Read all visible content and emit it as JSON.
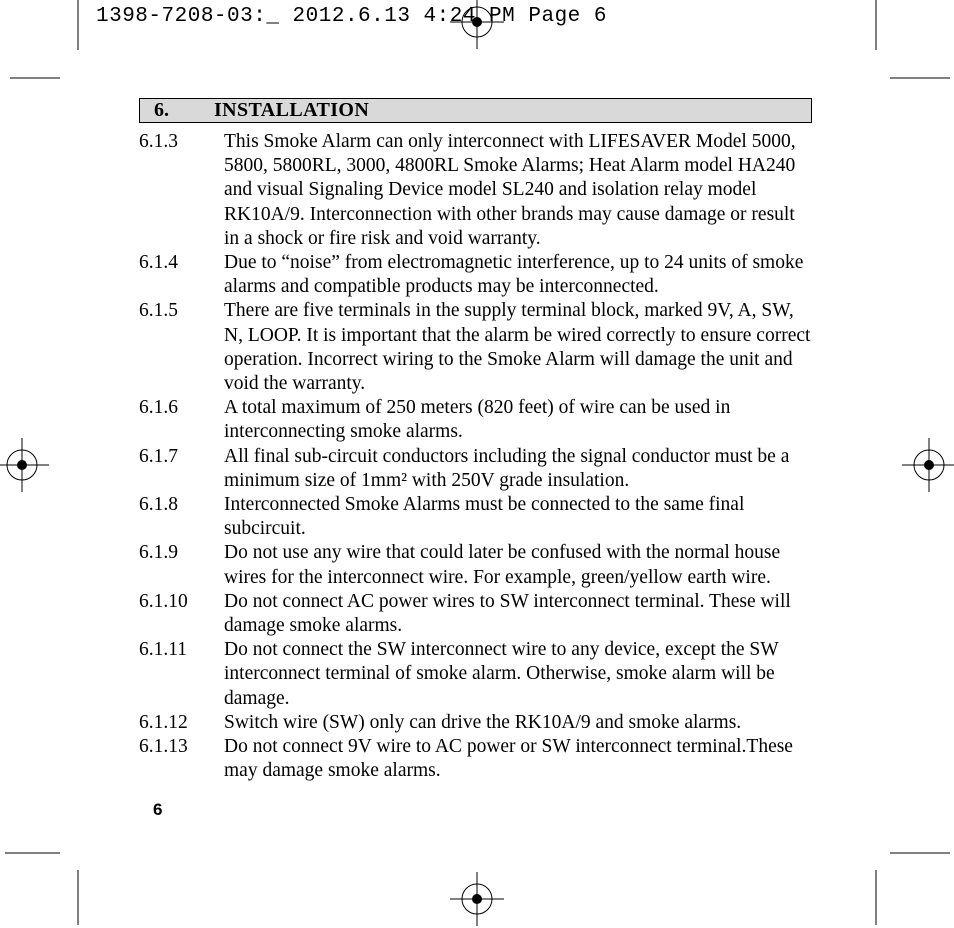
{
  "header": {
    "file_info": "1398-7208-03:_  2012.6.13  4:24 PM  Page 6"
  },
  "section": {
    "number": "6.",
    "title": "INSTALLATION"
  },
  "items": [
    {
      "num": "6.1.3",
      "text": "This Smoke Alarm can only interconnect with LIFESAVER Model 5000, 5800,  5800RL, 3000, 4800RL Smoke Alarms; Heat Alarm model HA240 and visual Signaling Device model SL240 and isolation relay model RK10A/9. Interconnection with other brands may cause damage or result in a shock or fire risk and void warranty."
    },
    {
      "num": "6.1.4",
      "text": "Due to “noise” from electromagnetic interference, up to 24 units of smoke alarms and compatible products may be interconnected."
    },
    {
      "num": "6.1.5",
      "text": "There are five terminals in the supply terminal block, marked 9V, A, SW, N, LOOP. It is important that the alarm be wired correctly to ensure correct opera­tion. Incorrect wiring to the Smoke Alarm will damage the unit and void the warranty."
    },
    {
      "num": "6.1.6",
      "text": "A total maximum of 250 meters (820 feet) of wire can be used in interconnect­ing smoke alarms."
    },
    {
      "num": "6.1.7",
      "text": "All final sub-circuit conductors including the signal conductor must be a mini­mum size of 1mm² with 250V grade insulation."
    },
    {
      "num": "6.1.8",
      "text": "Interconnected Smoke Alarms must be connected to the same final subcircuit."
    },
    {
      "num": "6.1.9",
      "text": "Do not use any wire that could later be confused with the normal house wires for the interconnect wire. For example, green/yellow earth wire."
    },
    {
      "num": "6.1.10",
      "text": "Do not connect AC power wires to SW interconnect terminal. These will dam­age smoke alarms."
    },
    {
      "num": "6.1.11",
      "text": "Do not connect the SW interconnect wire to any device, except the SW inter­connect terminal of smoke alarm. Otherwise, smoke alarm will be damage."
    },
    {
      "num": "6.1.12",
      "text": "Switch wire (SW) only can drive the RK10A/9 and smoke alarms."
    },
    {
      "num": "6.1.13",
      "text": "Do not connect 9V wire to AC power or SW interconnect  terminal.These may damage smoke alarms."
    }
  ],
  "page_number": "6",
  "marks": {
    "color": "#000000"
  }
}
